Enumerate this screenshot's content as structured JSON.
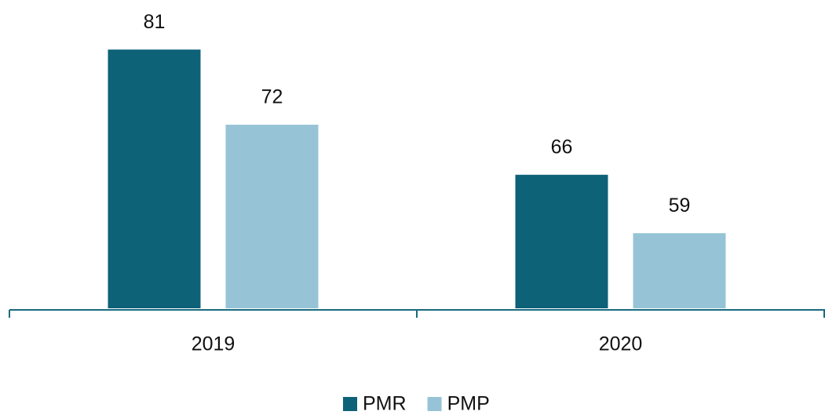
{
  "chart_data": {
    "type": "bar",
    "categories": [
      "2019",
      "2020"
    ],
    "series": [
      {
        "name": "PMR",
        "color": "#0d6278",
        "values": [
          81,
          66
        ]
      },
      {
        "name": "PMP",
        "color": "#96c4d6",
        "values": [
          72,
          59
        ]
      }
    ],
    "ylim": [
      50,
      86
    ],
    "legend": "bottom"
  }
}
